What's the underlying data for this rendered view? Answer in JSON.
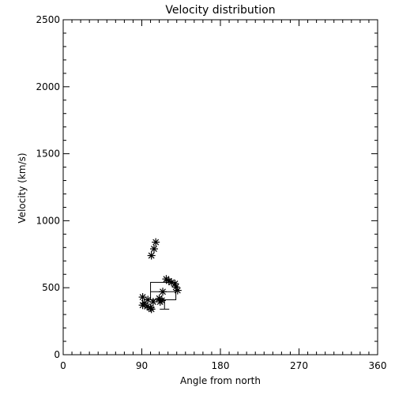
{
  "chart_data": {
    "type": "scatter",
    "title": "Velocity distribution",
    "xlabel": "Angle from north",
    "ylabel": "Velocity (km/s)",
    "xlim": [
      0,
      360
    ],
    "ylim": [
      0,
      2500
    ],
    "x_major_ticks": [
      0,
      90,
      180,
      270,
      360
    ],
    "x_minor_step": 10,
    "y_major_ticks": [
      0,
      500,
      1000,
      1500,
      2000,
      2500
    ],
    "y_minor_step": 100,
    "grid": false,
    "marker": "asterisk",
    "points": [
      {
        "x": 106,
        "y": 840
      },
      {
        "x": 104,
        "y": 790
      },
      {
        "x": 101,
        "y": 740
      },
      {
        "x": 118,
        "y": 565
      },
      {
        "x": 121,
        "y": 550
      },
      {
        "x": 124,
        "y": 540
      },
      {
        "x": 128,
        "y": 530
      },
      {
        "x": 129,
        "y": 505
      },
      {
        "x": 131,
        "y": 480
      },
      {
        "x": 114,
        "y": 470
      },
      {
        "x": 91,
        "y": 430
      },
      {
        "x": 97,
        "y": 410
      },
      {
        "x": 110,
        "y": 420
      },
      {
        "x": 93,
        "y": 385
      },
      {
        "x": 103,
        "y": 395
      },
      {
        "x": 111,
        "y": 395
      },
      {
        "x": 91,
        "y": 370
      },
      {
        "x": 96,
        "y": 360
      },
      {
        "x": 100,
        "y": 350
      },
      {
        "x": 101,
        "y": 340
      },
      {
        "x": 113,
        "y": 405
      }
    ],
    "box": {
      "x_left": 100,
      "x_right": 129,
      "q1": 410,
      "median": 470,
      "q3": 540,
      "whisker_low": 340,
      "whisker_high": 545,
      "whisker_x": 116
    }
  }
}
